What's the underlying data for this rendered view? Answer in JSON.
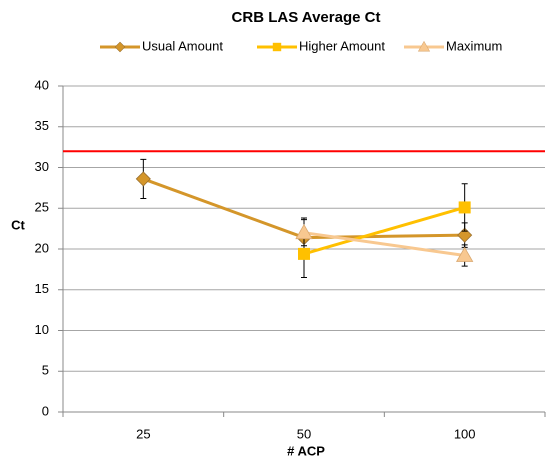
{
  "chart_data": {
    "type": "line",
    "title": "CRB LAS Average Ct",
    "x_label": "# ACP",
    "y_label": "Ct",
    "categories": [
      "25",
      "50",
      "100"
    ],
    "series": [
      {
        "name": "Usual Amount",
        "color": "#D4962A",
        "marker": "diamond",
        "values": [
          28.6,
          21.4,
          21.7
        ],
        "errors": [
          2.4,
          2.4,
          1.5
        ]
      },
      {
        "name": "Higher Amount",
        "color": "#FFC000",
        "marker": "square",
        "values": [
          null,
          19.4,
          25.1
        ],
        "errors": [
          null,
          2.9,
          2.9
        ]
      },
      {
        "name": "Maximum",
        "color": "#F8C890",
        "marker": "triangle",
        "values": [
          null,
          22.0,
          19.2
        ],
        "errors": [
          null,
          1.6,
          1.3
        ]
      }
    ],
    "reference_line": {
      "value": 32,
      "color": "#FF0000"
    },
    "ylim": [
      0,
      40
    ],
    "yticks": [
      0,
      5,
      10,
      15,
      20,
      25,
      30,
      35,
      40
    ],
    "grid": true,
    "legend": "top"
  }
}
